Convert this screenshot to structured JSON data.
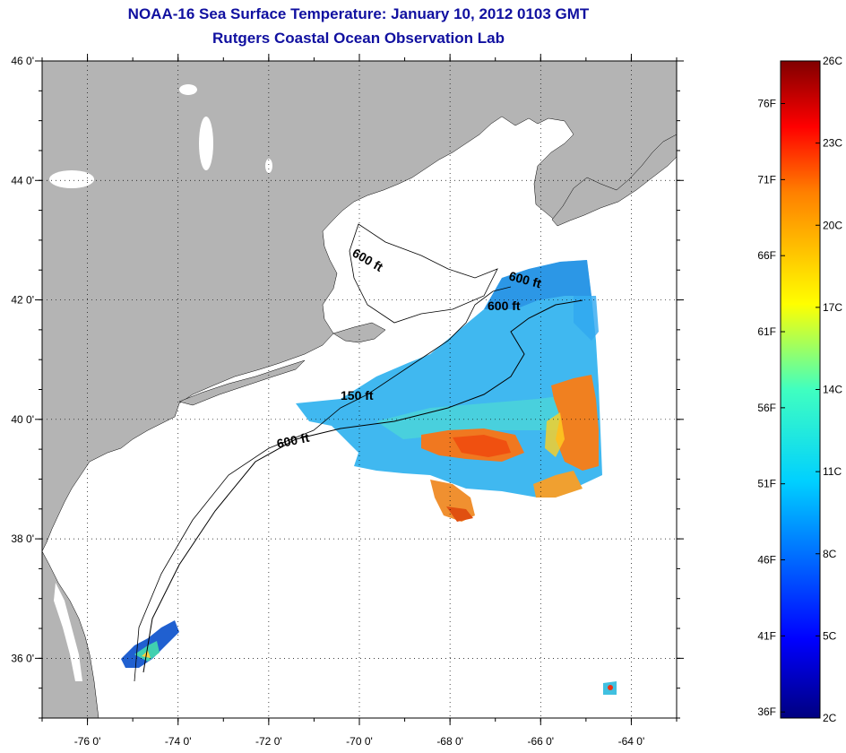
{
  "title": "NOAA-16 Sea Surface Temperature:  January 10, 2012 0103 GMT",
  "subtitle": "Rutgers Coastal Ocean Observation Lab",
  "map": {
    "lon_range": [
      -77,
      -63
    ],
    "lat_range": [
      35,
      46
    ],
    "lon_ticks": [
      {
        "value": -76,
        "label": "-76 0'"
      },
      {
        "value": -74,
        "label": "-74 0'"
      },
      {
        "value": -72,
        "label": "-72 0'"
      },
      {
        "value": -70,
        "label": "-70 0'"
      },
      {
        "value": -68,
        "label": "-68 0'"
      },
      {
        "value": -66,
        "label": "-66 0'"
      },
      {
        "value": -64,
        "label": "-64 0'"
      }
    ],
    "lat_ticks": [
      {
        "value": 46,
        "label": "46 0'"
      },
      {
        "value": 44,
        "label": "44 0'"
      },
      {
        "value": 42,
        "label": "42 0'"
      },
      {
        "value": 40,
        "label": "40 0'"
      },
      {
        "value": 38,
        "label": "38 0'"
      },
      {
        "value": 36,
        "label": "36 0'"
      }
    ],
    "contour_labels": [
      "600 ft",
      "600 ft",
      "600 ft",
      "150 ft",
      "600 ft"
    ],
    "land_color": "#b4b4b4",
    "grid": "dotted"
  },
  "colorbar": {
    "celsius": [
      "26C",
      "23C",
      "20C",
      "17C",
      "14C",
      "11C",
      "8C",
      "5C",
      "2C"
    ],
    "fahrenheit": [
      "76F",
      "71F",
      "66F",
      "61F",
      "56F",
      "51F",
      "46F",
      "41F",
      "36F"
    ],
    "range_c": [
      2,
      26
    ]
  }
}
